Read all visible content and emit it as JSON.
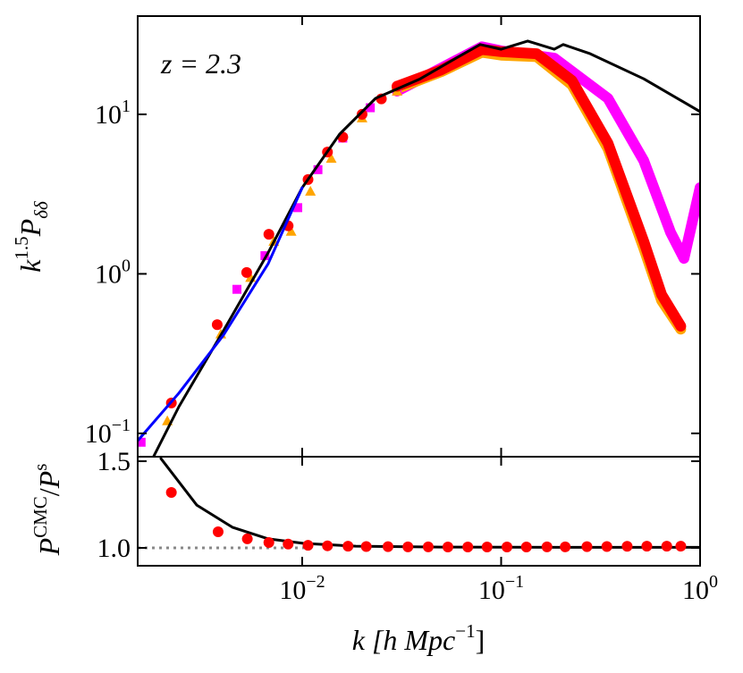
{
  "chart_data": [
    {
      "type": "line",
      "log_x": true,
      "log_y": true,
      "xlim": [
        0.00149,
        1
      ],
      "ylim": [
        0.0714,
        41.3
      ],
      "yticks": [
        {
          "value": 0.1,
          "label": "10",
          "exponent": "−1"
        },
        {
          "value": 1,
          "label": "10",
          "exponent": "0"
        },
        {
          "value": 10,
          "label": "10",
          "exponent": "1"
        }
      ],
      "ylabel": {
        "base": "k",
        "sup": "1.5",
        "base2": "P",
        "sub": "δδ"
      },
      "annotation": "z = 2.3",
      "series": [
        {
          "style": "thick-line",
          "color": "#ff00ff",
          "x": [
            0.03,
            0.05,
            0.08,
            0.1,
            0.185,
            0.344,
            0.521,
            0.711,
            0.83,
            1
          ],
          "values": [
            14,
            19.5,
            26.5,
            25,
            22.5,
            12.6,
            5.12,
            1.82,
            1.25,
            3.47
          ]
        },
        {
          "style": "thick-line",
          "color": "#ffa500",
          "x": [
            0.03,
            0.05,
            0.08,
            0.1,
            0.151,
            0.227,
            0.344,
            0.521,
            0.641,
            0.8
          ],
          "values": [
            14.5,
            18.5,
            24.5,
            23.5,
            23,
            15.3,
            6.1,
            1.45,
            0.68,
            0.45
          ]
        },
        {
          "style": "thick-line",
          "color": "#ff0000",
          "x": [
            0.03,
            0.05,
            0.08,
            0.1,
            0.151,
            0.227,
            0.344,
            0.521,
            0.641,
            0.8
          ],
          "values": [
            15,
            19,
            25.5,
            24.7,
            24,
            16.3,
            6.6,
            1.6,
            0.74,
            0.47
          ]
        },
        {
          "style": "squares",
          "color": "#ff00ff",
          "x": [
            0.00155,
            0.0047,
            0.0065,
            0.0095,
            0.012,
            0.016,
            0.022,
            0.03
          ],
          "values": [
            0.088,
            0.8,
            1.3,
            2.6,
            4.5,
            7.1,
            11,
            14
          ]
        },
        {
          "style": "triangles",
          "color": "#ffa500",
          "x": [
            0.0021,
            0.0039,
            0.0055,
            0.0072,
            0.0088,
            0.011,
            0.014,
            0.02,
            0.03
          ],
          "values": [
            0.12,
            0.42,
            0.95,
            1.6,
            1.85,
            3.3,
            5.3,
            9.5,
            14
          ]
        },
        {
          "style": "circles",
          "color": "#ff0000",
          "x": [
            0.0022,
            0.00374,
            0.00526,
            0.0068,
            0.0085,
            0.0107,
            0.0134,
            0.016,
            0.02,
            0.025,
            0.03
          ],
          "values": [
            0.155,
            0.48,
            1.02,
            1.77,
            2.0,
            3.9,
            5.8,
            7.2,
            10,
            12.5,
            15
          ]
        },
        {
          "style": "line",
          "color": "#000000",
          "x": [
            0.00179,
            0.0024,
            0.00402,
            0.00675,
            0.01,
            0.01545,
            0.0234,
            0.0392,
            0.0593,
            0.0784,
            0.1,
            0.136,
            0.185,
            0.205,
            0.28,
            0.521,
            1
          ],
          "values": [
            0.0714,
            0.147,
            0.44,
            1.36,
            3.47,
            7.53,
            12.6,
            16.7,
            22.5,
            27.4,
            25.6,
            28.8,
            25.6,
            27.4,
            24.0,
            16.7,
            10.4
          ]
        },
        {
          "style": "line",
          "color": "#0000ff",
          "x": [
            0.00149,
            0.0024,
            0.00402,
            0.00675,
            0.01
          ],
          "values": [
            0.09,
            0.179,
            0.413,
            1.16,
            3.47
          ]
        }
      ]
    },
    {
      "type": "line",
      "log_x": true,
      "log_y": false,
      "xlim": [
        0.00149,
        1
      ],
      "ylim": [
        0.897,
        1.526
      ],
      "xticks": [
        {
          "value": 0.01,
          "label": "10",
          "exponent": "−2"
        },
        {
          "value": 0.1,
          "label": "10",
          "exponent": "−1"
        },
        {
          "value": 1,
          "label": "10",
          "exponent": "0"
        }
      ],
      "yticks": [
        {
          "value": 1,
          "label": "1.0"
        },
        {
          "value": 1.5,
          "label": "1.5"
        }
      ],
      "xlabel": {
        "text": "k [h Mpc",
        "sup": "−1",
        "close": "]"
      },
      "ylabel": {
        "base": "P",
        "sup": "CMC",
        "slash": "/",
        "base2": "P",
        "sup2": "s"
      },
      "reference": {
        "y": 1,
        "x": [
          0.00149,
          0.0102
        ],
        "color": "#888888"
      },
      "series": [
        {
          "style": "line",
          "color": "#000000",
          "x": [
            0.00195,
            0.00295,
            0.00446,
            0.00675,
            0.0102,
            0.0186,
            0.05,
            0.2,
            1
          ],
          "values": [
            1.515,
            1.247,
            1.119,
            1.052,
            1.026,
            1.01,
            1.005,
            1.003,
            1.003
          ]
        },
        {
          "style": "circles",
          "color": "#ff0000",
          "x": [
            0.0022,
            0.00378,
            0.0053,
            0.0068,
            0.0085,
            0.0107,
            0.0134,
            0.017,
            0.021,
            0.027,
            0.034,
            0.043,
            0.054,
            0.068,
            0.085,
            0.107,
            0.134,
            0.17,
            0.21,
            0.27,
            0.34,
            0.43,
            0.54,
            0.68,
            0.8
          ],
          "values": [
            1.32,
            1.093,
            1.052,
            1.031,
            1.022,
            1.015,
            1.012,
            1.01,
            1.008,
            1.007,
            1.006,
            1.006,
            1.005,
            1.005,
            1.005,
            1.005,
            1.005,
            1.006,
            1.006,
            1.007,
            1.008,
            1.009,
            1.01,
            1.01,
            1.01
          ]
        }
      ]
    }
  ]
}
